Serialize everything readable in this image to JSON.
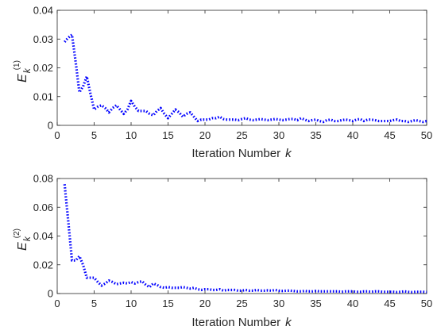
{
  "chart_data": [
    {
      "type": "line",
      "title": "",
      "xlabel": "Iteration Number",
      "xlabel_var": "k",
      "ylabel": {
        "base": "E",
        "subscript": "k",
        "superscript": "(1)"
      },
      "xlim": [
        0,
        50
      ],
      "ylim": [
        0,
        0.04
      ],
      "xticks": [
        "0",
        "5",
        "10",
        "15",
        "20",
        "25",
        "30",
        "35",
        "40",
        "45",
        "50"
      ],
      "yticks": [
        "0",
        "0.01",
        "0.02",
        "0.03",
        "0.04"
      ],
      "grid": false,
      "color": "#0000ff",
      "line_style": "dotted",
      "x": [
        1,
        1.5,
        2,
        2.5,
        3,
        3.5,
        4,
        4.5,
        5,
        5.5,
        6,
        6.5,
        7,
        7.5,
        8,
        8.5,
        9,
        9.5,
        10,
        10.5,
        11,
        11.5,
        12,
        12.5,
        13,
        13.5,
        14,
        14.5,
        15,
        15.5,
        16,
        16.5,
        17,
        17.5,
        18,
        18.5,
        19,
        19.5,
        20,
        20.5,
        21,
        21.5,
        22,
        22.5,
        23,
        23.5,
        24,
        24.5,
        25,
        25.5,
        26,
        26.5,
        27,
        27.5,
        28,
        28.5,
        29,
        29.5,
        30,
        30.5,
        31,
        31.5,
        32,
        32.5,
        33,
        33.5,
        34,
        34.5,
        35,
        35.5,
        36,
        36.5,
        37,
        37.5,
        38,
        38.5,
        39,
        39.5,
        40,
        40.5,
        41,
        41.5,
        42,
        42.5,
        43,
        43.5,
        44,
        44.5,
        45,
        45.5,
        46,
        46.5,
        47,
        47.5,
        48,
        48.5,
        49,
        49.5,
        50
      ],
      "y": [
        0.029,
        0.0305,
        0.0315,
        0.022,
        0.0115,
        0.0135,
        0.017,
        0.011,
        0.0055,
        0.0065,
        0.007,
        0.006,
        0.0045,
        0.006,
        0.007,
        0.0055,
        0.004,
        0.0055,
        0.0085,
        0.0065,
        0.005,
        0.005,
        0.005,
        0.004,
        0.0035,
        0.005,
        0.006,
        0.004,
        0.0025,
        0.004,
        0.0055,
        0.0045,
        0.003,
        0.004,
        0.0045,
        0.003,
        0.0015,
        0.002,
        0.002,
        0.002,
        0.0025,
        0.0025,
        0.003,
        0.0022,
        0.002,
        0.002,
        0.002,
        0.0018,
        0.0022,
        0.0025,
        0.002,
        0.0018,
        0.002,
        0.0022,
        0.002,
        0.0018,
        0.002,
        0.0022,
        0.002,
        0.0018,
        0.002,
        0.0022,
        0.0022,
        0.0018,
        0.0025,
        0.002,
        0.0015,
        0.0018,
        0.002,
        0.0015,
        0.0012,
        0.0018,
        0.002,
        0.0015,
        0.0015,
        0.0018,
        0.002,
        0.0018,
        0.0015,
        0.002,
        0.0022,
        0.0015,
        0.002,
        0.002,
        0.0018,
        0.0015,
        0.0015,
        0.0015,
        0.0015,
        0.0018,
        0.002,
        0.0015,
        0.0015,
        0.0012,
        0.0015,
        0.0018,
        0.0015,
        0.0012,
        0.0015
      ]
    },
    {
      "type": "line",
      "title": "",
      "xlabel": "Iteration Number",
      "xlabel_var": "k",
      "ylabel": {
        "base": "E",
        "subscript": "k",
        "superscript": "(2)"
      },
      "xlim": [
        0,
        50
      ],
      "ylim": [
        0,
        0.08
      ],
      "xticks": [
        "0",
        "5",
        "10",
        "15",
        "20",
        "25",
        "30",
        "35",
        "40",
        "45",
        "50"
      ],
      "yticks": [
        "0",
        "0.02",
        "0.04",
        "0.06",
        "0.08"
      ],
      "grid": false,
      "color": "#0000ff",
      "line_style": "dotted",
      "x": [
        1,
        1.5,
        2,
        2.5,
        3,
        3.5,
        4,
        4.5,
        5,
        5.5,
        6,
        6.5,
        7,
        7.5,
        8,
        8.5,
        9,
        9.5,
        10,
        10.5,
        11,
        11.5,
        12,
        12.5,
        13,
        13.5,
        14,
        14.5,
        15,
        15.5,
        16,
        16.5,
        17,
        17.5,
        18,
        18.5,
        19,
        19.5,
        20,
        20.5,
        21,
        21.5,
        22,
        22.5,
        23,
        23.5,
        24,
        24.5,
        25,
        25.5,
        26,
        26.5,
        27,
        27.5,
        28,
        28.5,
        29,
        29.5,
        30,
        30.5,
        31,
        31.5,
        32,
        32.5,
        33,
        33.5,
        34,
        34.5,
        35,
        35.5,
        36,
        36.5,
        37,
        37.5,
        38,
        38.5,
        39,
        39.5,
        40,
        40.5,
        41,
        41.5,
        42,
        42.5,
        43,
        43.5,
        44,
        44.5,
        45,
        45.5,
        46,
        46.5,
        47,
        47.5,
        48,
        48.5,
        49,
        49.5,
        50
      ],
      "y": [
        0.076,
        0.05,
        0.023,
        0.023,
        0.026,
        0.02,
        0.011,
        0.011,
        0.011,
        0.008,
        0.0055,
        0.007,
        0.009,
        0.008,
        0.0065,
        0.007,
        0.0075,
        0.007,
        0.008,
        0.007,
        0.008,
        0.0085,
        0.006,
        0.0045,
        0.007,
        0.006,
        0.0045,
        0.004,
        0.0045,
        0.004,
        0.004,
        0.004,
        0.0045,
        0.004,
        0.0035,
        0.004,
        0.003,
        0.0025,
        0.003,
        0.003,
        0.0025,
        0.0025,
        0.003,
        0.002,
        0.0025,
        0.0025,
        0.0025,
        0.002,
        0.002,
        0.0025,
        0.002,
        0.002,
        0.0025,
        0.002,
        0.002,
        0.0022,
        0.002,
        0.0025,
        0.002,
        0.0018,
        0.002,
        0.002,
        0.0018,
        0.0015,
        0.0015,
        0.0018,
        0.0015,
        0.0015,
        0.0018,
        0.0015,
        0.0015,
        0.0015,
        0.0015,
        0.0015,
        0.0015,
        0.0012,
        0.0015,
        0.0015,
        0.0015,
        0.0012,
        0.0012,
        0.0015,
        0.0015,
        0.0012,
        0.0015,
        0.0015,
        0.0012,
        0.0012,
        0.0012,
        0.0012,
        0.001,
        0.0012,
        0.0015,
        0.0012,
        0.001,
        0.0012,
        0.0012,
        0.0012,
        0.001
      ]
    }
  ]
}
